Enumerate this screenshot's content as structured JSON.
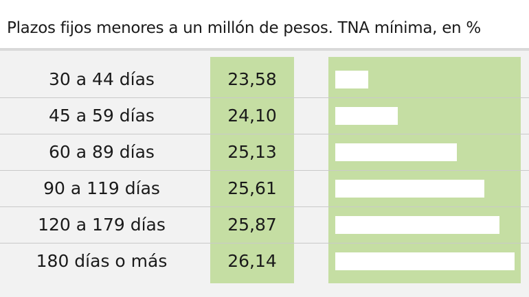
{
  "title": "Plazos fijos menores a un millón de pesos. TNA mínima, en %",
  "colors": {
    "background": "#f2f2f2",
    "title_background": "#ffffff",
    "column_fill": "#c5dea3",
    "bar_fill": "#ffffff",
    "text": "#1a1a1a"
  },
  "chart_data": {
    "type": "bar",
    "orientation": "horizontal",
    "title": "Plazos fijos menores a un millón de pesos. TNA mínima, en %",
    "categories": [
      "30 a 44 días",
      "45 a 59 días",
      "60 a 89 días",
      "90 a 119 días",
      "120 a 179 días",
      "180 días o más"
    ],
    "labels": [
      "23,58",
      "24,10",
      "25,13",
      "25,61",
      "25,87",
      "26,14"
    ],
    "values": [
      23.58,
      24.1,
      25.13,
      25.61,
      25.87,
      26.14
    ],
    "xlim": [
      23.0,
      26.14
    ],
    "grid": false,
    "legend": "none"
  }
}
